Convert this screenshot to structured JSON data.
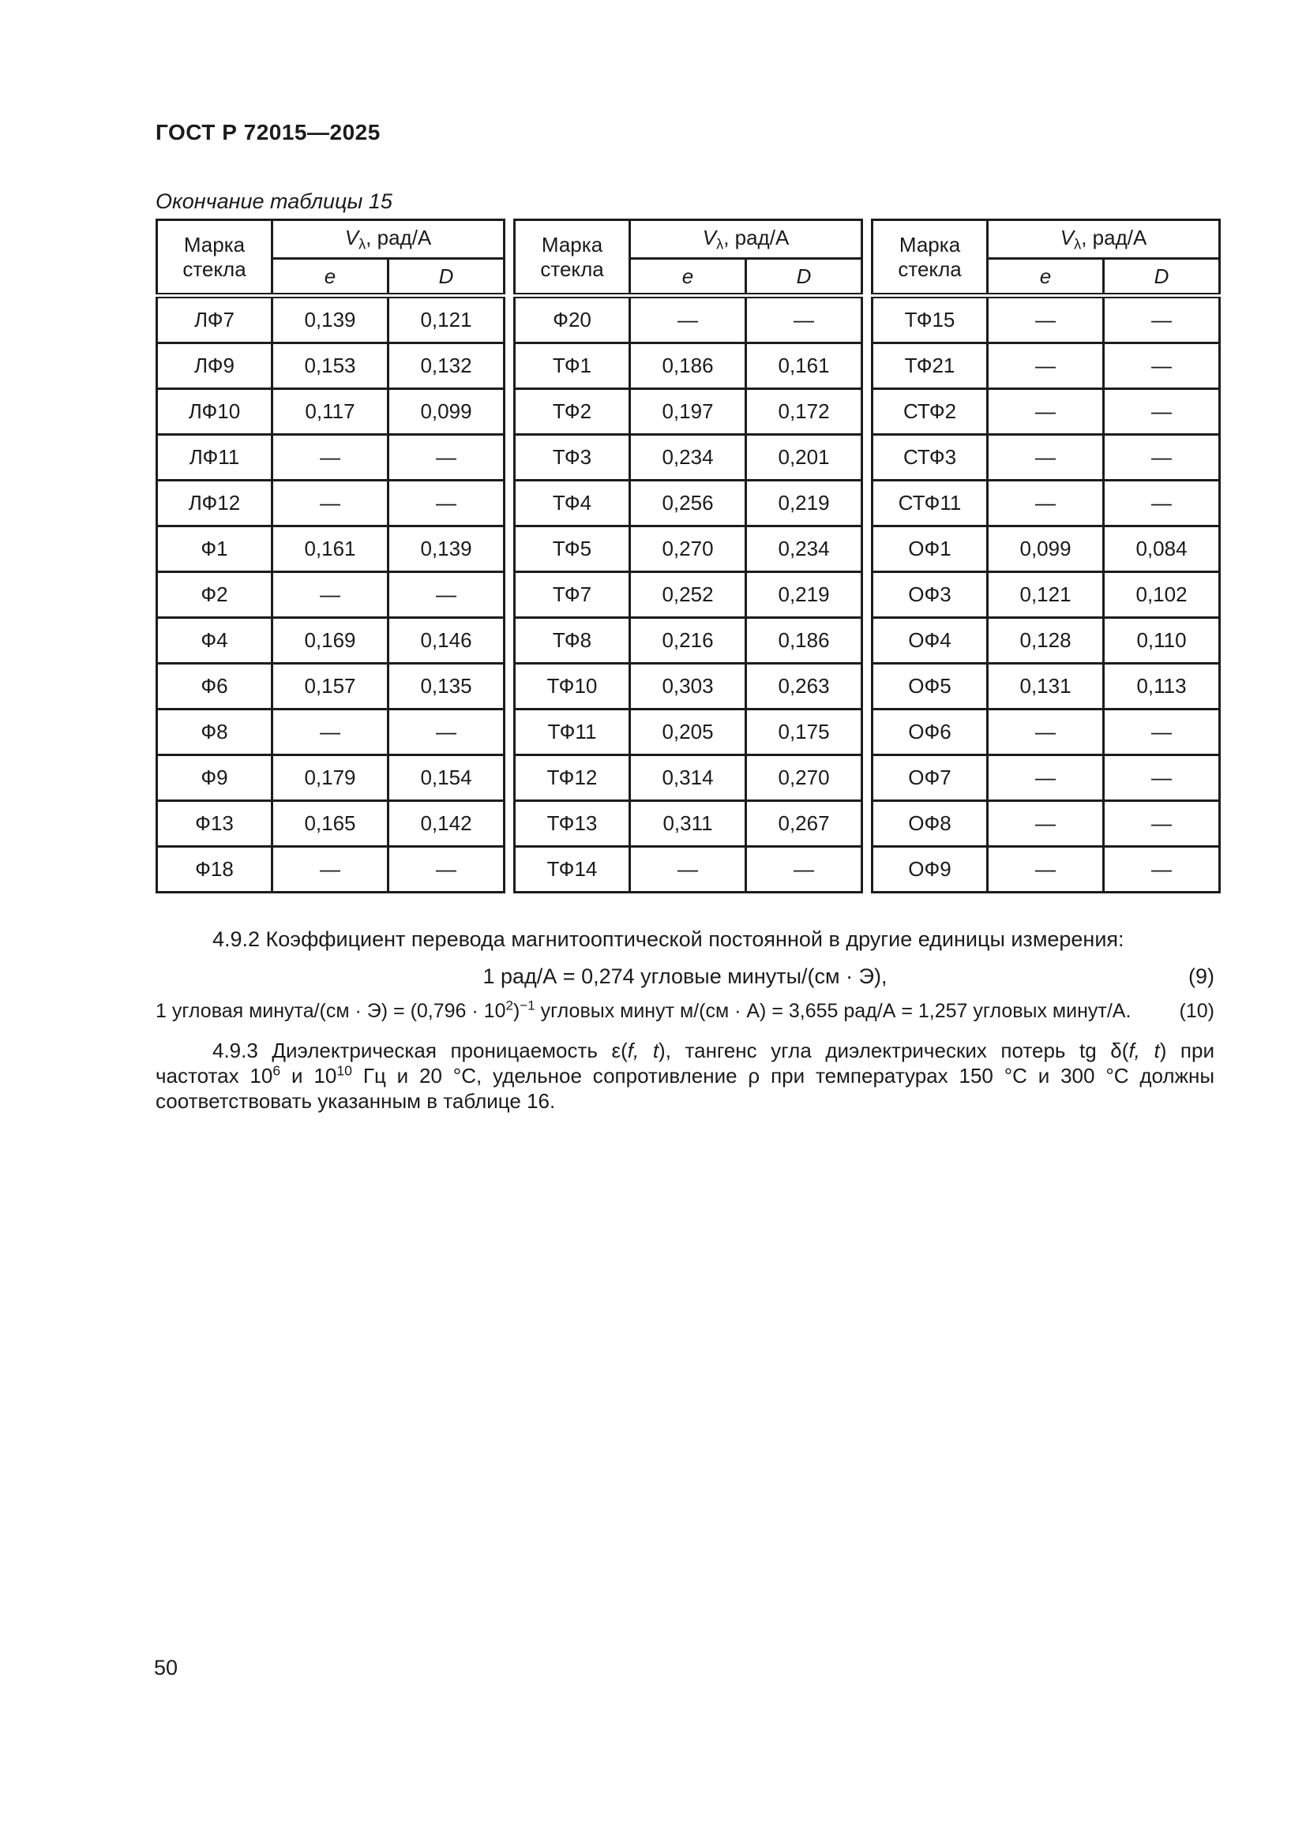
{
  "page": {
    "doc_code": "ГОСТ Р 72015—2025",
    "table_caption": "Окончание таблицы 15",
    "page_number": "50"
  },
  "table": {
    "header": {
      "grade": "Марка стекла",
      "v_letter": "V",
      "v_sub": "λ",
      "v_units": ", рад/А",
      "e": "e",
      "d": "D"
    },
    "groups": [
      {
        "rows": [
          [
            "ЛФ7",
            "0,139",
            "0,121"
          ],
          [
            "ЛФ9",
            "0,153",
            "0,132"
          ],
          [
            "ЛФ10",
            "0,117",
            "0,099"
          ],
          [
            "ЛФ11",
            "—",
            "—"
          ],
          [
            "ЛФ12",
            "—",
            "—"
          ],
          [
            "Ф1",
            "0,161",
            "0,139"
          ],
          [
            "Ф2",
            "—",
            "—"
          ],
          [
            "Ф4",
            "0,169",
            "0,146"
          ],
          [
            "Ф6",
            "0,157",
            "0,135"
          ],
          [
            "Ф8",
            "—",
            "—"
          ],
          [
            "Ф9",
            "0,179",
            "0,154"
          ],
          [
            "Ф13",
            "0,165",
            "0,142"
          ],
          [
            "Ф18",
            "—",
            "—"
          ]
        ]
      },
      {
        "rows": [
          [
            "Ф20",
            "—",
            "—"
          ],
          [
            "ТФ1",
            "0,186",
            "0,161"
          ],
          [
            "ТФ2",
            "0,197",
            "0,172"
          ],
          [
            "ТФ3",
            "0,234",
            "0,201"
          ],
          [
            "ТФ4",
            "0,256",
            "0,219"
          ],
          [
            "ТФ5",
            "0,270",
            "0,234"
          ],
          [
            "ТФ7",
            "0,252",
            "0,219"
          ],
          [
            "ТФ8",
            "0,216",
            "0,186"
          ],
          [
            "ТФ10",
            "0,303",
            "0,263"
          ],
          [
            "ТФ11",
            "0,205",
            "0,175"
          ],
          [
            "ТФ12",
            "0,314",
            "0,270"
          ],
          [
            "ТФ13",
            "0,311",
            "0,267"
          ],
          [
            "ТФ14",
            "—",
            "—"
          ]
        ]
      },
      {
        "rows": [
          [
            "ТФ15",
            "—",
            "—"
          ],
          [
            "ТФ21",
            "—",
            "—"
          ],
          [
            "СТФ2",
            "—",
            "—"
          ],
          [
            "СТФ3",
            "—",
            "—"
          ],
          [
            "СТФ11",
            "—",
            "—"
          ],
          [
            "ОФ1",
            "0,099",
            "0,084"
          ],
          [
            "ОФ3",
            "0,121",
            "0,102"
          ],
          [
            "ОФ4",
            "0,128",
            "0,110"
          ],
          [
            "ОФ5",
            "0,131",
            "0,113"
          ],
          [
            "ОФ6",
            "—",
            "—"
          ],
          [
            "ОФ7",
            "—",
            "—"
          ],
          [
            "ОФ8",
            "—",
            "—"
          ],
          [
            "ОФ9",
            "—",
            "—"
          ]
        ]
      }
    ]
  },
  "text": {
    "p492": "4.9.2 Коэффициент перевода магнитооптической постоянной в другие единицы измерения:",
    "eq9": {
      "body": "1 рад/А = 0,274 угловые минуты/(см · Э),",
      "label": "(9)"
    },
    "eq10": {
      "p1": "1 угловая минута/(см · Э) = (0,796 · 10",
      "sup1": "2",
      "p2": ")",
      "sup2": "−1",
      "p3": " угловых минут м/(см · А) = 3,655 рад/А = 1,257 угловых минут/А.",
      "label": "(10)"
    },
    "p493": {
      "l1a": "4.9.3 Диэлектрическая проницаемость ε(",
      "l1b": "f, t",
      "l1c": "), тангенс угла диэлектрических потерь tg δ(",
      "l1d": "f, t",
      "l1e": ") при",
      "l2a": "частотах 10",
      "l2sup1": "6",
      "l2b": " и 10",
      "l2sup2": "10",
      "l2c": " Гц и 20 °С, удельное сопротивление ρ при температурах 150 °С и 300 °С должны",
      "l3": "соответствовать указанным в таблице 16."
    }
  }
}
